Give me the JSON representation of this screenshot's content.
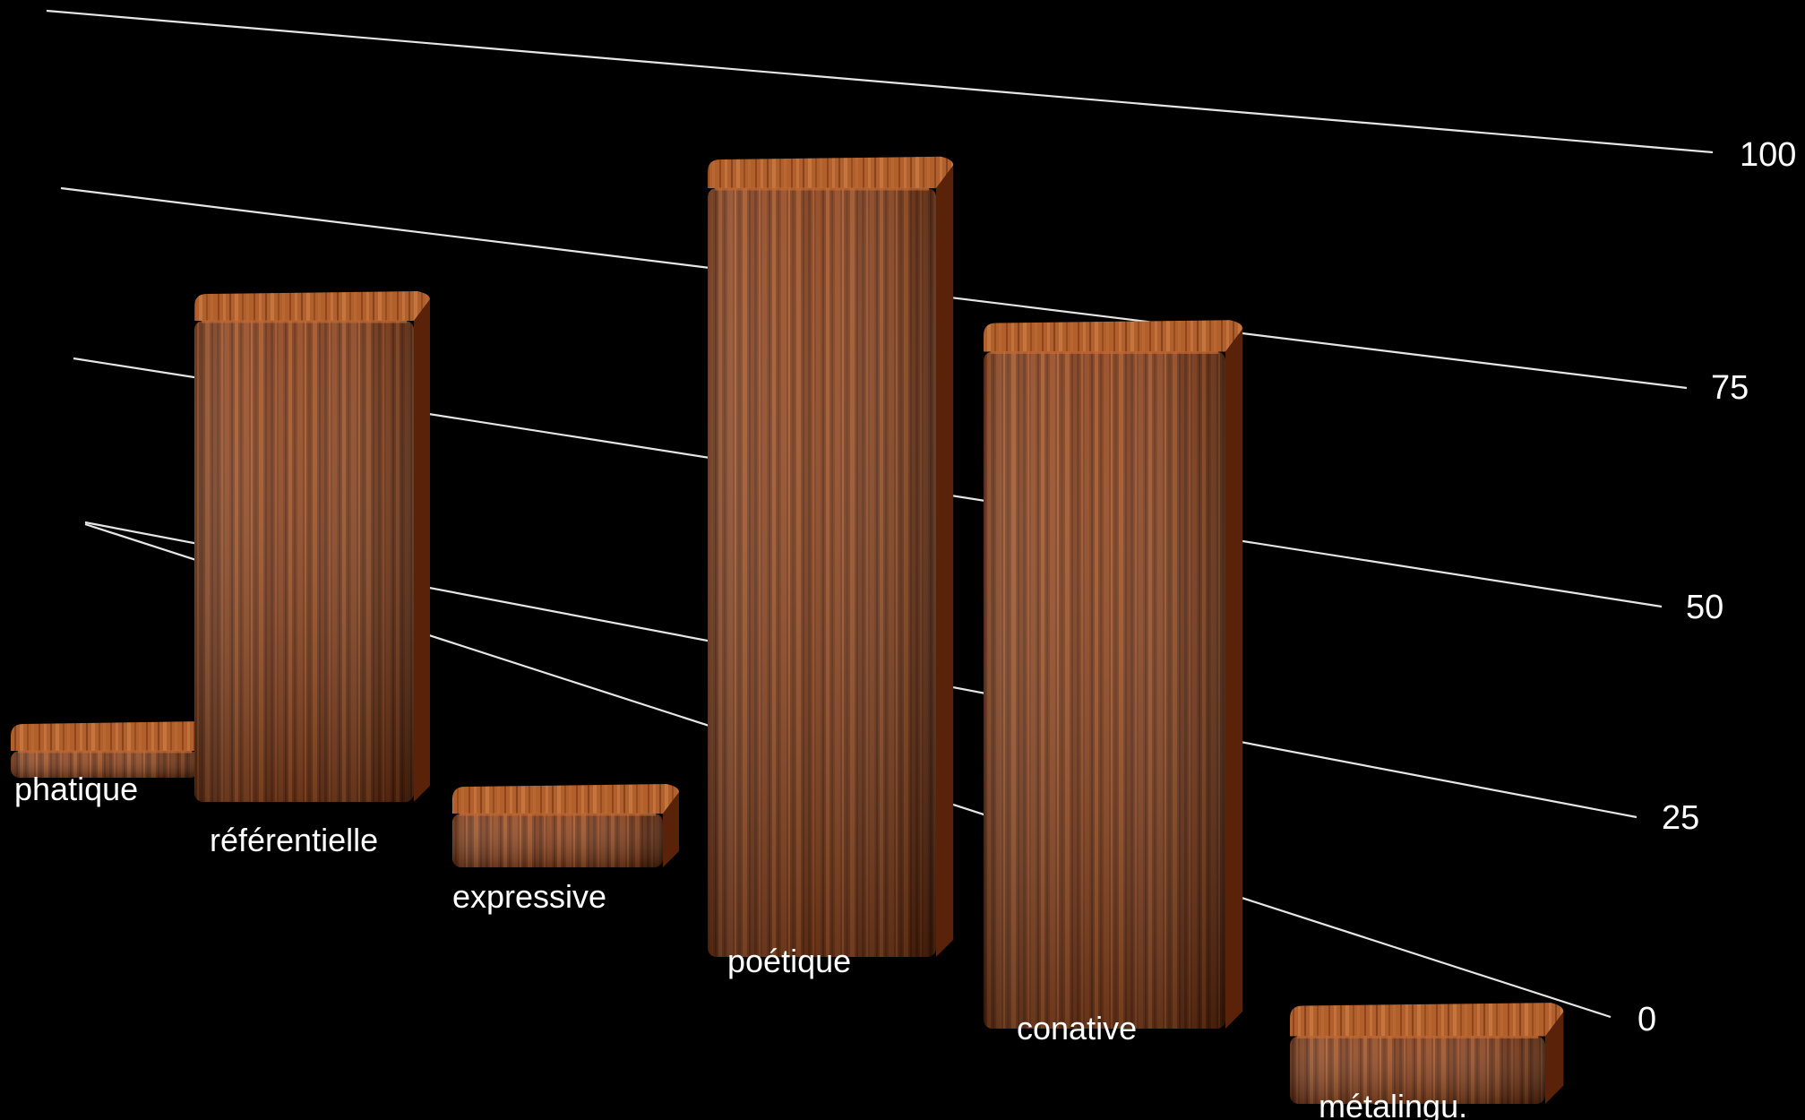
{
  "chart_data": {
    "type": "bar",
    "categories": [
      "phatique",
      "référentielle",
      "expressive",
      "poétique",
      "conative",
      "métalingu."
    ],
    "values": [
      10,
      90,
      15,
      100,
      90,
      15
    ],
    "y_ticks": [
      "0",
      "25",
      "50",
      "75",
      "100"
    ],
    "ylim": [
      0,
      100
    ],
    "grid": true,
    "style": "3d-wood",
    "colors": {
      "background": "#000000",
      "bar_front": "#8a3d14",
      "bar_light": "#c46a34",
      "bar_dark": "#5a2208",
      "grid": "#e6e6e6",
      "text": "#ffffff"
    }
  }
}
